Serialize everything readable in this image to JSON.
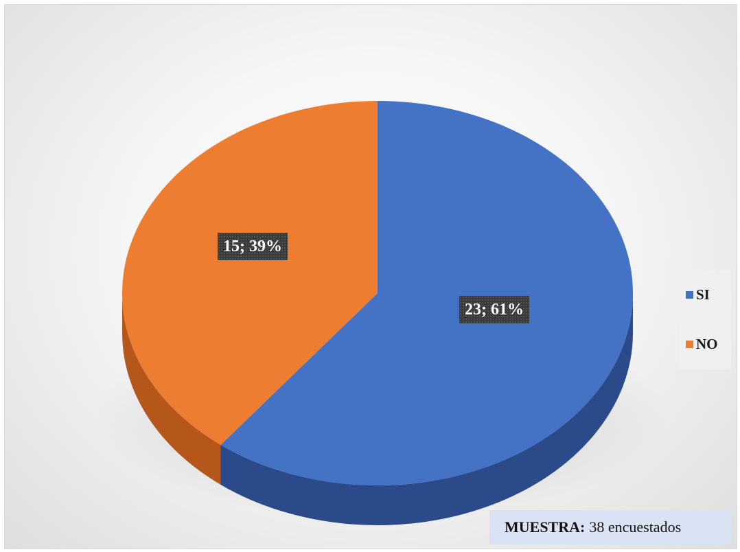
{
  "chart_data": {
    "type": "pie",
    "series": [
      {
        "name": "SI",
        "value": 23,
        "percent": 61,
        "label": "23; 61%",
        "color": "#4472c4",
        "side_color": "#2a4a8a"
      },
      {
        "name": "NO",
        "value": 15,
        "percent": 39,
        "label": "15; 39%",
        "color": "#ed7d31",
        "side_color": "#b5561a"
      }
    ],
    "legend_position": "right",
    "style": "3d-pie"
  },
  "legend": {
    "items": [
      {
        "label": "SI",
        "color": "#4472c4"
      },
      {
        "label": "NO",
        "color": "#ed7d31"
      }
    ]
  },
  "sample_note": {
    "bold": "MUESTRA:",
    "text": "38 encuestados"
  }
}
